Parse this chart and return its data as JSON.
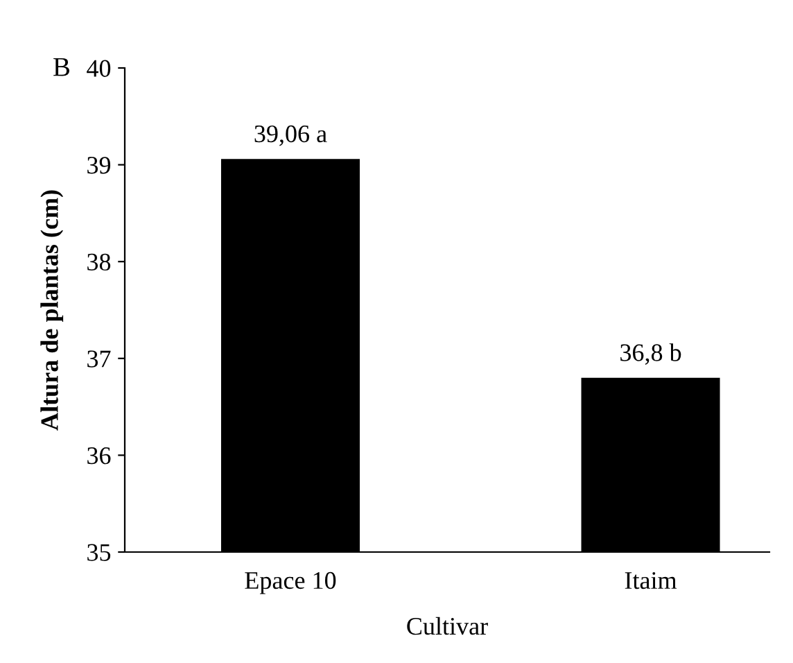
{
  "chart_data": {
    "type": "bar",
    "xlabel": "Cultivar",
    "ylabel": "Altura de plantas (cm)",
    "categories": [
      "Epace 10",
      "Itaim"
    ],
    "values": [
      39.06,
      36.8
    ],
    "value_labels": [
      "39,06 a",
      "36,8 b"
    ],
    "color": "#000000",
    "ylim": [
      35,
      40
    ],
    "yticks": [
      35,
      36,
      37,
      38,
      39,
      40
    ],
    "grid": false,
    "legend": false,
    "annotations": [
      "B"
    ]
  }
}
